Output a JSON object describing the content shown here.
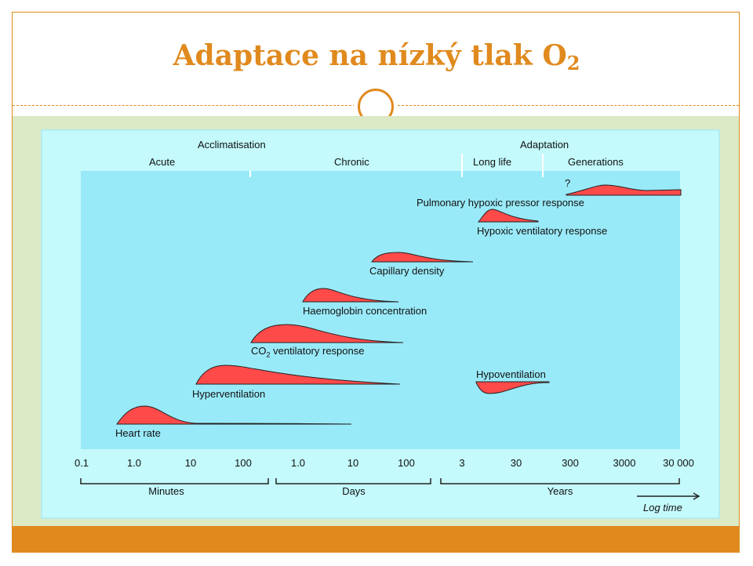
{
  "slide": {
    "title_text": "Adaptace na nízký tlak O",
    "title_sub": "2",
    "colors": {
      "accent": "#e08a1e",
      "band": "#dbe9c4",
      "figure_bg": "#c4fafc",
      "plot_bg": "#99eaf8",
      "curve_fill": "#ff4a4a"
    }
  },
  "figure": {
    "headers": {
      "acclimatisation": "Acclimatisation",
      "adaptation": "Adaptation",
      "acute": "Acute",
      "chronic": "Chronic",
      "long_life": "Long life",
      "generations": "Generations"
    },
    "question_mark": "?",
    "responses": {
      "pulmonary": "Pulmonary hypoxic pressor response",
      "hypoxic_vent": "Hypoxic ventilatory response",
      "capillary": "Capillary density",
      "haemoglobin": "Haemoglobin concentration",
      "co2_prefix": "CO",
      "co2_sub": "2",
      "co2_suffix": " ventilatory response",
      "hyperventilation": "Hyperventilation",
      "hypoventilation": "Hypoventilation",
      "heart_rate": "Heart rate"
    },
    "ticks": {
      "minutes": [
        "0.1",
        "1.0",
        "10",
        "100"
      ],
      "days": [
        "1.0",
        "10",
        "100"
      ],
      "years": [
        "3",
        "30",
        "300",
        "3000",
        "30 000"
      ]
    },
    "units": {
      "minutes": "Minutes",
      "days": "Days",
      "years": "Years"
    },
    "axis_label": "Log time"
  }
}
